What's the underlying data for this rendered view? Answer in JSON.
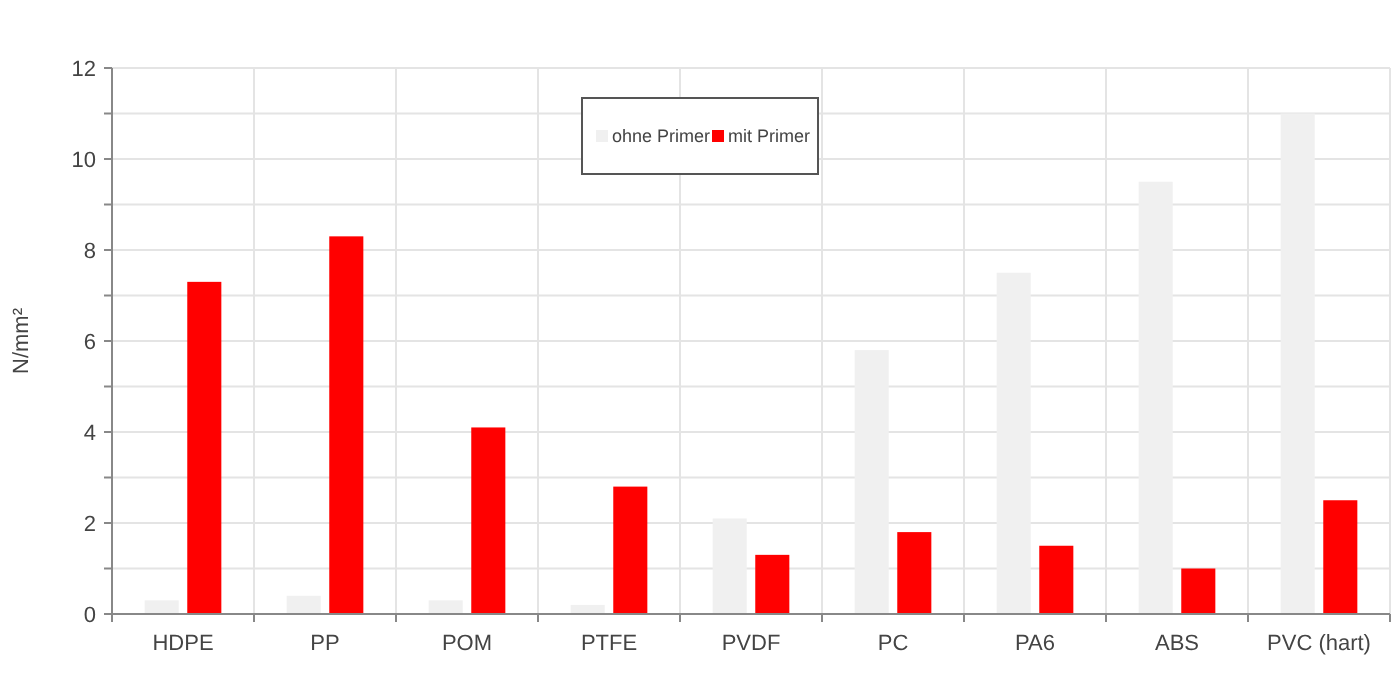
{
  "chart_data": {
    "type": "bar",
    "ylabel": "N/mm²",
    "categories": [
      "HDPE",
      "PP",
      "POM",
      "PTFE",
      "PVDF",
      "PC",
      "PA6",
      "ABS",
      "PVC (hart)"
    ],
    "series": [
      {
        "name": "ohne Primer",
        "color": "#f0f0f0",
        "values": [
          0.3,
          0.4,
          0.3,
          0.2,
          2.1,
          5.8,
          7.5,
          9.5,
          11
        ]
      },
      {
        "name": "mit Primer",
        "color": "#ff0000",
        "values": [
          7.3,
          8.3,
          4.1,
          2.8,
          1.3,
          1.8,
          1.5,
          1.0,
          2.5
        ]
      }
    ],
    "ylim": [
      0,
      12
    ],
    "yticks": [
      0,
      {
        "value": 1,
        "label": null
      },
      2,
      {
        "value": 3,
        "label": null
      },
      4,
      {
        "value": 5,
        "label": null
      },
      6,
      {
        "value": 7,
        "label": null
      },
      8,
      {
        "value": 9,
        "label": null
      },
      10,
      {
        "value": 11,
        "label": null
      },
      12
    ],
    "grid": true,
    "legend": "top"
  }
}
